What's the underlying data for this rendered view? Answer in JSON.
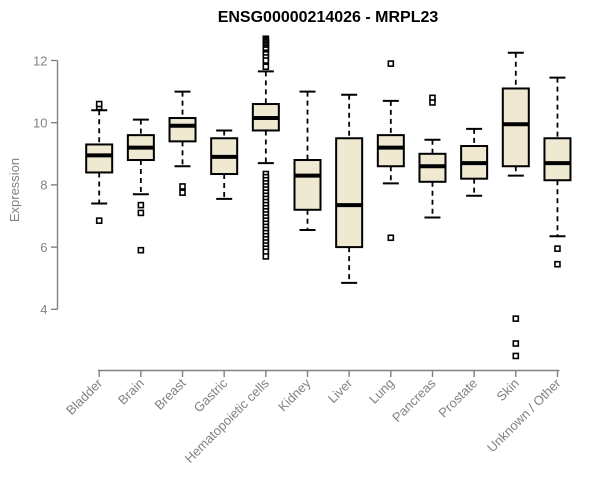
{
  "chart_data": {
    "type": "boxplot",
    "title": "ENSG00000214026 - MRPL23",
    "xlabel": "",
    "ylabel": "Expression",
    "ylim": [
      4,
      12
    ],
    "yticks": [
      12,
      10,
      8,
      6,
      4
    ],
    "grid": false,
    "legend_position": "none",
    "categories": [
      "Bladder",
      "Brain",
      "Breast",
      "Gastric",
      "Hematopoietic cells",
      "Kidney",
      "Liver",
      "Lung",
      "Pancreas",
      "Prostate",
      "Skin",
      "Unknown / Other"
    ],
    "series": [
      {
        "name": "Bladder",
        "whisker_low": 7.4,
        "q1": 8.4,
        "median": 8.95,
        "q3": 9.3,
        "whisker_high": 10.4,
        "outliers_high": [
          10.5,
          10.6
        ],
        "outliers_low": [
          6.85
        ]
      },
      {
        "name": "Brain",
        "whisker_low": 7.7,
        "q1": 8.8,
        "median": 9.2,
        "q3": 9.6,
        "whisker_high": 10.1,
        "outliers_high": [],
        "outliers_low": [
          7.35,
          7.1,
          5.9
        ]
      },
      {
        "name": "Breast",
        "whisker_low": 8.6,
        "q1": 9.4,
        "median": 9.9,
        "q3": 10.15,
        "whisker_high": 11.0,
        "outliers_high": [],
        "outliers_low": [
          7.95,
          7.75
        ]
      },
      {
        "name": "Gastric",
        "whisker_low": 7.55,
        "q1": 8.35,
        "median": 8.9,
        "q3": 9.5,
        "whisker_high": 9.75,
        "outliers_high": [],
        "outliers_low": []
      },
      {
        "name": "Hematopoietic cells",
        "whisker_low": 8.7,
        "q1": 9.75,
        "median": 10.15,
        "q3": 10.6,
        "whisker_high": 11.65,
        "outliers_high": [
          12.7,
          12.65,
          12.6,
          12.55,
          12.5,
          12.45,
          12.4,
          12.35,
          12.25,
          12.2,
          12.1,
          12.0,
          11.8
        ],
        "outliers_low": [
          8.35,
          8.25,
          8.15,
          8.05,
          7.95,
          7.85,
          7.75,
          7.65,
          7.55,
          7.45,
          7.35,
          7.25,
          7.15,
          7.05,
          6.95,
          6.85,
          6.75,
          6.65,
          6.55,
          6.45,
          6.35,
          6.25,
          6.15,
          6.05,
          5.95,
          5.85,
          5.7
        ]
      },
      {
        "name": "Kidney",
        "whisker_low": 6.55,
        "q1": 7.2,
        "median": 8.3,
        "q3": 8.8,
        "whisker_high": 11.0,
        "outliers_high": [],
        "outliers_low": []
      },
      {
        "name": "Liver",
        "whisker_low": 4.85,
        "q1": 6.0,
        "median": 7.35,
        "q3": 9.5,
        "whisker_high": 10.9,
        "outliers_high": [],
        "outliers_low": []
      },
      {
        "name": "Lung",
        "whisker_low": 8.05,
        "q1": 8.6,
        "median": 9.2,
        "q3": 9.6,
        "whisker_high": 10.7,
        "outliers_high": [
          11.9
        ],
        "outliers_low": [
          6.3
        ]
      },
      {
        "name": "Pancreas",
        "whisker_low": 6.95,
        "q1": 8.1,
        "median": 8.6,
        "q3": 9.0,
        "whisker_high": 9.45,
        "outliers_high": [
          10.8,
          10.65
        ],
        "outliers_low": []
      },
      {
        "name": "Prostate",
        "whisker_low": 7.65,
        "q1": 8.2,
        "median": 8.7,
        "q3": 9.25,
        "whisker_high": 9.8,
        "outliers_high": [],
        "outliers_low": []
      },
      {
        "name": "Skin",
        "whisker_low": 8.3,
        "q1": 8.6,
        "median": 9.95,
        "q3": 11.1,
        "whisker_high": 12.25,
        "outliers_high": [],
        "outliers_low": [
          3.7,
          2.9,
          2.5
        ]
      },
      {
        "name": "Unknown / Other",
        "whisker_low": 6.35,
        "q1": 8.15,
        "median": 8.7,
        "q3": 9.5,
        "whisker_high": 11.45,
        "outliers_high": [],
        "outliers_low": [
          5.95,
          5.45
        ]
      }
    ],
    "colors": {
      "box_fill": "#EFE9D2",
      "box_border": "#000000",
      "median": "#000000",
      "whisker": "#000000",
      "outlier": "#000000",
      "axis": "#828282",
      "title": "#000000",
      "background": "#FFFFFF"
    }
  }
}
